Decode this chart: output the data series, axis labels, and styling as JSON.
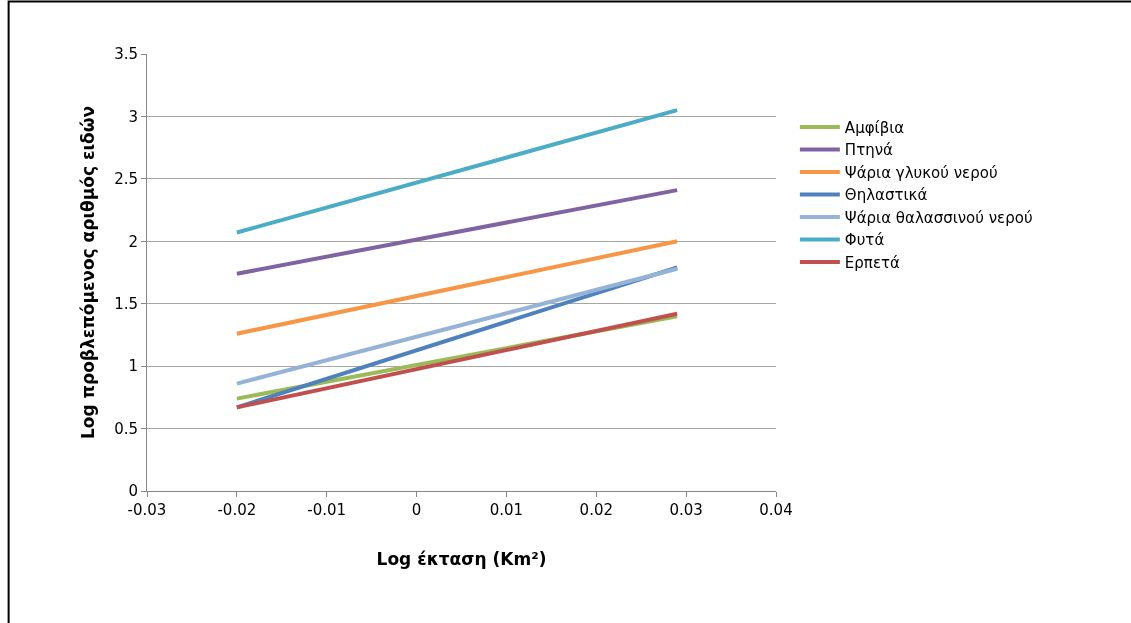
{
  "chart_data": {
    "type": "line",
    "xlabel": "Log έκταση (Km²)",
    "ylabel": "Log προβλεπόμενος αριθμός ειδών",
    "x": [
      -0.02,
      0.029
    ],
    "series": [
      {
        "name": "Αμφίβια",
        "color": "#9bbb59",
        "values": [
          0.74,
          1.4
        ]
      },
      {
        "name": "Πτηνά",
        "color": "#8064a2",
        "values": [
          1.74,
          2.41
        ]
      },
      {
        "name": "Ψάρια γλυκού νερού",
        "color": "#f79646",
        "values": [
          1.26,
          2.0
        ]
      },
      {
        "name": "Θηλαστικά",
        "color": "#4f81bd",
        "values": [
          0.67,
          1.79
        ]
      },
      {
        "name": "Ψάρια θαλασσινού νερού",
        "color": "#95b3d7",
        "values": [
          0.86,
          1.78
        ]
      },
      {
        "name": "Φυτά",
        "color": "#4bacc6",
        "values": [
          2.07,
          3.05
        ]
      },
      {
        "name": "Ερπετά",
        "color": "#c0504d",
        "values": [
          0.67,
          1.42
        ]
      }
    ],
    "xlim": [
      -0.03,
      0.04
    ],
    "xticks": [
      -0.03,
      -0.02,
      -0.01,
      0,
      0.01,
      0.02,
      0.03,
      0.04
    ],
    "ylim": [
      0,
      3.5
    ],
    "yticks": [
      0,
      0.5,
      1,
      1.5,
      2,
      2.5,
      3,
      3.5
    ],
    "grid": "y",
    "legend": "right",
    "marker": "none",
    "line_style": "solid"
  }
}
